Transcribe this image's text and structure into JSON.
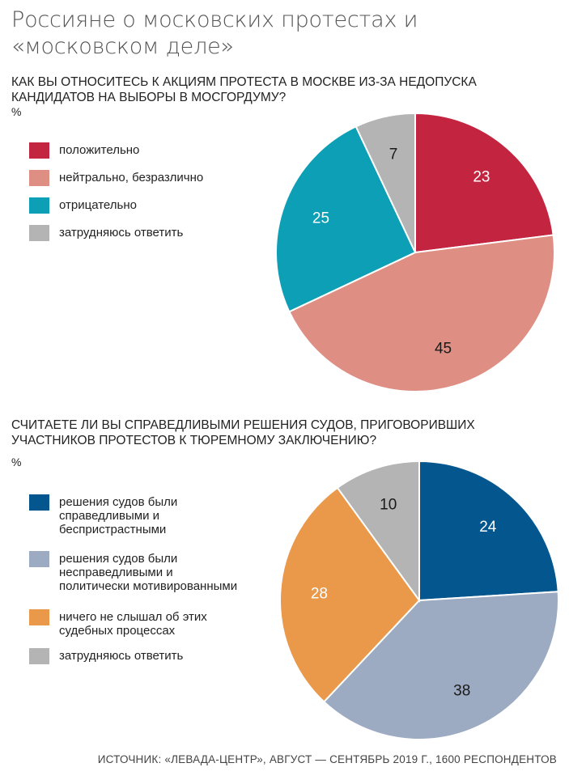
{
  "title": "Россияне о московских протестах и «московском деле»",
  "source": "ИСТОЧНИК: «ЛЕВАДА-ЦЕНТР», АВГУСТ — СЕНТЯБРЬ 2019 Г., 1600 РЕСПОНДЕНТОВ",
  "chart_data": [
    {
      "type": "pie",
      "title": "КАК ВЫ ОТНОСИТЕСЬ К АКЦИЯМ ПРОТЕСТА В МОСКВЕ ИЗ-ЗА НЕДОПУСКА КАНДИДАТОВ НА ВЫБОРЫ В МОСГОРДУМУ?",
      "unit": "%",
      "categories": [
        "положительно",
        "нейтрально, безразлично",
        "отрицательно",
        "затрудняюсь ответить"
      ],
      "values": [
        23,
        45,
        25,
        7
      ],
      "colors": [
        "#c32541",
        "#de8e82",
        "#0c9fb6",
        "#b4b4b4"
      ],
      "label_colors": [
        "#ffffff",
        "#1a1a1a",
        "#ffffff",
        "#1a1a1a"
      ],
      "legend_position": "left"
    },
    {
      "type": "pie",
      "title": "СЧИТАЕТЕ ЛИ ВЫ СПРАВЕДЛИВЫМИ РЕШЕНИЯ СУДОВ, ПРИГОВОРИВШИХ УЧАСТНИКОВ ПРОТЕСТОВ К ТЮРЕМНОМУ ЗАКЛЮЧЕНИЮ?",
      "unit": "%",
      "categories": [
        "решения судов были справедливыми и беспристрастными",
        "решения судов были несправедливыми и политически мотивированными",
        "ничего не слышал об этих судебных процессах",
        "затрудняюсь ответить"
      ],
      "values": [
        24,
        38,
        28,
        10
      ],
      "colors": [
        "#04568e",
        "#9cabc1",
        "#ea9849",
        "#b4b4b4"
      ],
      "label_colors": [
        "#ffffff",
        "#1a1a1a",
        "#ffffff",
        "#1a1a1a"
      ],
      "legend_position": "left"
    }
  ]
}
